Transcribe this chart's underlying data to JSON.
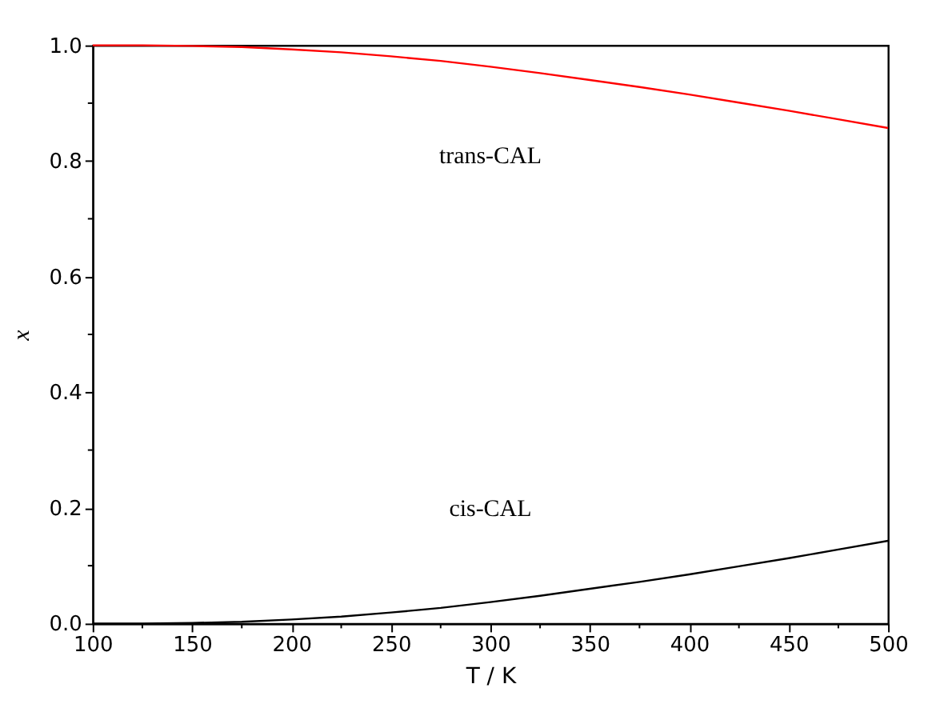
{
  "chart_data": {
    "type": "line",
    "xlabel": "T / K",
    "ylabel": "x",
    "x": [
      100,
      125,
      150,
      175,
      200,
      225,
      250,
      275,
      300,
      325,
      350,
      375,
      400,
      425,
      450,
      475,
      500
    ],
    "series": [
      {
        "color": "#ff0000",
        "values": [
          1.0,
          1.0,
          0.999,
          0.997,
          0.993,
          0.988,
          0.981,
          0.973,
          0.963,
          0.952,
          0.94,
          0.928,
          0.915,
          0.901,
          0.887,
          0.872,
          0.857
        ]
      },
      {
        "color": "#000000",
        "values": [
          0.0,
          0.0,
          0.001,
          0.003,
          0.007,
          0.012,
          0.019,
          0.027,
          0.037,
          0.048,
          0.06,
          0.072,
          0.085,
          0.099,
          0.113,
          0.128,
          0.143
        ]
      }
    ],
    "annotations": [
      "trans-CAL",
      "cis-CAL"
    ],
    "xlim": [
      100,
      500
    ],
    "ylim": [
      0,
      1.0
    ],
    "xticks": [
      100,
      {
        "value": 125,
        "label": null
      },
      150,
      {
        "value": 175,
        "label": null
      },
      200,
      {
        "value": 225,
        "label": null
      },
      250,
      {
        "value": 275,
        "label": null
      },
      300,
      {
        "value": 325,
        "label": null
      },
      350,
      {
        "value": 375,
        "label": null
      },
      400,
      {
        "value": 425,
        "label": null
      },
      450,
      {
        "value": 475,
        "label": null
      },
      500
    ],
    "yticks": [
      {
        "value": 0,
        "label": "0.0"
      },
      {
        "value": 0.1,
        "label": null
      },
      0.2,
      {
        "value": 0.3,
        "label": null
      },
      0.4,
      {
        "value": 0.5,
        "label": null
      },
      0.6,
      {
        "value": 0.7,
        "label": null
      },
      0.8,
      {
        "value": 0.9,
        "label": null
      },
      {
        "value": 1.0,
        "label": "1.0"
      }
    ],
    "grid": false,
    "line_style": "solid",
    "marker": "none"
  }
}
